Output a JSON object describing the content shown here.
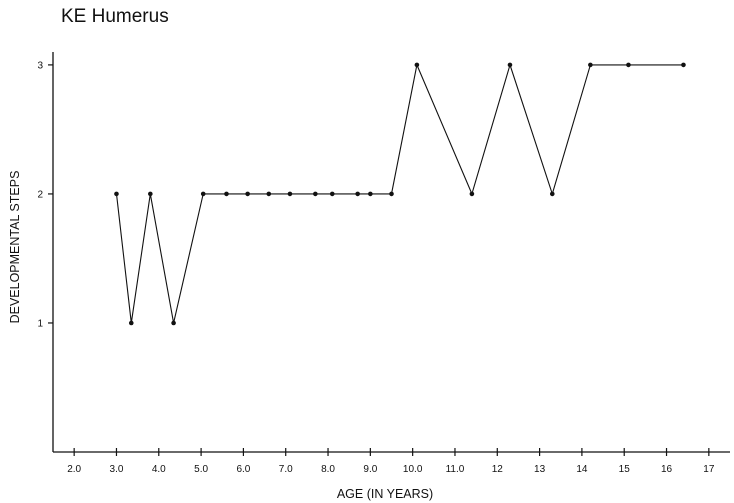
{
  "chart_data": {
    "type": "line",
    "title": "KE Humerus",
    "xlabel": "AGE (IN YEARS)",
    "ylabel": "DEVELOPMENTAL STEPS",
    "xlim": [
      1.5,
      17.5
    ],
    "ylim": [
      0,
      3.1
    ],
    "x_ticks": [
      {
        "value": 2,
        "label": "2.0"
      },
      {
        "value": 3,
        "label": "3.0"
      },
      {
        "value": 4,
        "label": "4.0"
      },
      {
        "value": 5,
        "label": "5.0"
      },
      {
        "value": 6,
        "label": "6.0"
      },
      {
        "value": 7,
        "label": "7.0"
      },
      {
        "value": 8,
        "label": "8.0"
      },
      {
        "value": 9,
        "label": "9.0"
      },
      {
        "value": 10,
        "label": "10.0"
      },
      {
        "value": 11,
        "label": "11.0"
      },
      {
        "value": 12,
        "label": "12"
      },
      {
        "value": 13,
        "label": "13"
      },
      {
        "value": 14,
        "label": "14"
      },
      {
        "value": 15,
        "label": "15"
      },
      {
        "value": 16,
        "label": "16"
      },
      {
        "value": 17,
        "label": "17"
      }
    ],
    "y_ticks": [
      {
        "value": 1,
        "label": "1"
      },
      {
        "value": 2,
        "label": "2"
      },
      {
        "value": 3,
        "label": "3"
      }
    ],
    "x": [
      3.0,
      3.35,
      3.8,
      4.35,
      5.05,
      5.6,
      6.1,
      6.6,
      7.1,
      7.7,
      8.1,
      8.7,
      9.0,
      9.5,
      10.1,
      11.4,
      12.3,
      13.3,
      14.2,
      15.1,
      16.4
    ],
    "y": [
      2,
      1,
      2,
      1,
      2,
      2,
      2,
      2,
      2,
      2,
      2,
      2,
      2,
      2,
      3,
      2,
      3,
      2,
      3,
      3,
      3
    ],
    "grid": false,
    "line_color": "#111111"
  }
}
